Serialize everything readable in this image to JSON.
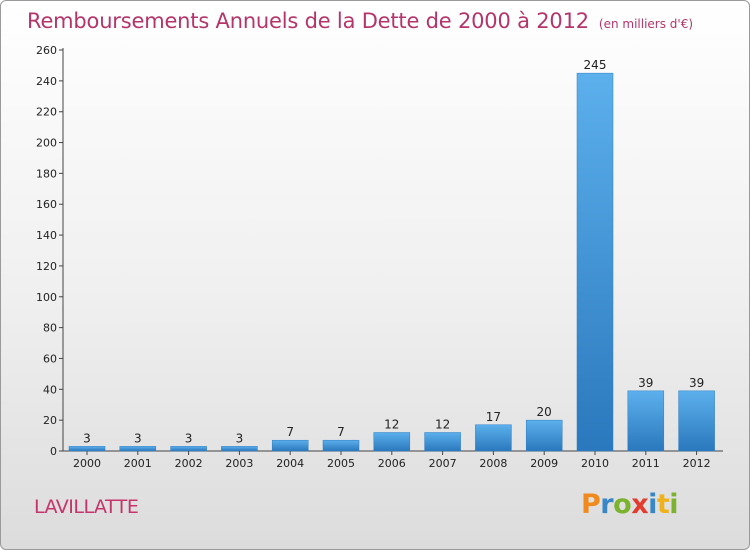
{
  "chart_data": {
    "type": "bar",
    "title": "Remboursements Annuels de la Dette de 2000 à 2012",
    "subtitle": "(en milliers d'€)",
    "categories": [
      "2000",
      "2001",
      "2002",
      "2003",
      "2004",
      "2005",
      "2006",
      "2007",
      "2008",
      "2009",
      "2010",
      "2011",
      "2012"
    ],
    "values": [
      3,
      3,
      3,
      3,
      7,
      7,
      12,
      12,
      17,
      20,
      245,
      39,
      39
    ],
    "ylim": [
      0,
      260
    ],
    "yticks": [
      0,
      20,
      40,
      60,
      80,
      100,
      120,
      140,
      160,
      180,
      200,
      220,
      240,
      260
    ],
    "grid": false,
    "bar_color": "#3d8fd6"
  },
  "footer": {
    "commune": "LAVILLATTE",
    "logo_letters": [
      "P",
      "r",
      "o",
      "x",
      "i",
      "t",
      "i"
    ],
    "logo_colors": [
      "#f08a1c",
      "#3a87c8",
      "#7bb32e",
      "#e23b2f",
      "#3a87c8",
      "#f0b21c",
      "#7bb32e"
    ]
  }
}
